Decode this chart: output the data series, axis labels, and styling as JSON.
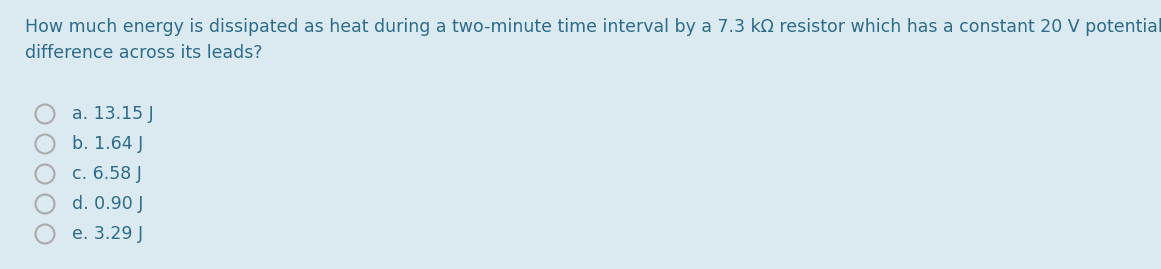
{
  "background_color": "#daeaf0",
  "question": "How much energy is dissipated as heat during a two-minute time interval by a 7.3 kΩ resistor which has a constant 20 V potential\ndifference across its leads?",
  "options": [
    "a. 13.15 J",
    "b. 1.64 J",
    "c. 6.58 J",
    "d. 0.90 J",
    "e. 3.29 J"
  ],
  "text_color": "#2e6b8a",
  "question_fontsize": 12.5,
  "option_fontsize": 12.5,
  "circle_color": "#aaaaaa",
  "circle_linewidth": 1.5
}
